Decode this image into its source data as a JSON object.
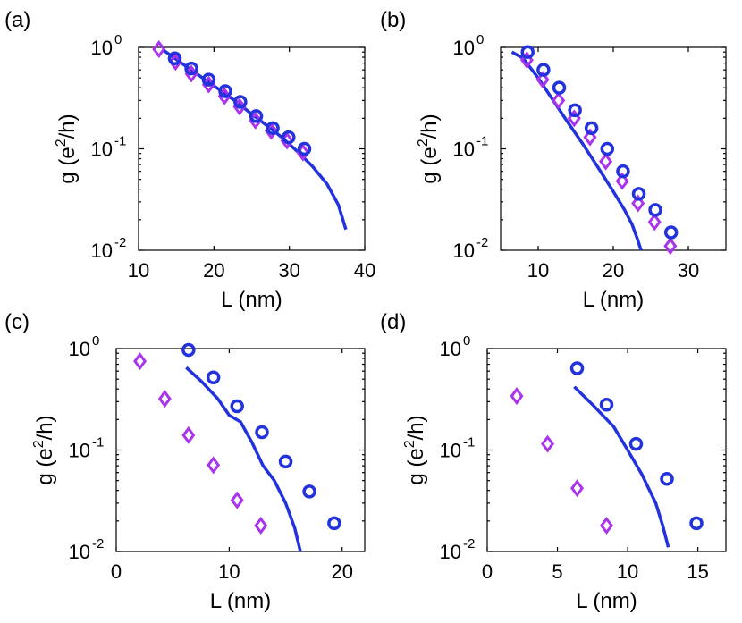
{
  "chart_data": [
    {
      "panel_label": "(a)",
      "type": "line",
      "xlabel": "L (nm)",
      "ylabel": "g (e²/h)",
      "xlim": [
        10,
        40
      ],
      "ylim": [
        0.01,
        1
      ],
      "yscale": "log",
      "x_ticks": [
        10,
        20,
        30,
        40
      ],
      "y_ticks": [
        {
          "base": "10",
          "exp": "0",
          "value": 1
        },
        {
          "base": "10",
          "exp": "-1",
          "value": 0.1
        },
        {
          "base": "10",
          "exp": "-2",
          "value": 0.01
        }
      ],
      "series": [
        {
          "name": "circles",
          "marker": "circle",
          "color": "#2233dd",
          "x": [
            14.8,
            17,
            19.3,
            21.5,
            23.5,
            25.6,
            27.8,
            29.9,
            32
          ],
          "y": [
            0.78,
            0.62,
            0.48,
            0.37,
            0.29,
            0.21,
            0.16,
            0.13,
            0.1
          ]
        },
        {
          "name": "diamonds",
          "marker": "diamond",
          "color": "#aa33ee",
          "x": [
            12.7,
            14.9,
            17,
            19.3,
            21.4,
            23.4,
            25.5,
            27.6,
            29.7,
            31.8
          ],
          "y": [
            0.96,
            0.72,
            0.55,
            0.43,
            0.33,
            0.26,
            0.19,
            0.15,
            0.12,
            0.092
          ]
        },
        {
          "name": "line",
          "marker": "line",
          "color": "#2233dd",
          "x": [
            13.2,
            15,
            17,
            19,
            21,
            23,
            25,
            27,
            29,
            31,
            33,
            35,
            36.5,
            37.5
          ],
          "y": [
            0.95,
            0.76,
            0.6,
            0.47,
            0.37,
            0.29,
            0.22,
            0.17,
            0.13,
            0.095,
            0.068,
            0.045,
            0.028,
            0.016
          ]
        }
      ]
    },
    {
      "panel_label": "(b)",
      "type": "line",
      "xlabel": "L (nm)",
      "ylabel": "g (e²/h)",
      "xlim": [
        5,
        35
      ],
      "ylim": [
        0.01,
        1
      ],
      "yscale": "log",
      "x_ticks": [
        10,
        20,
        30
      ],
      "y_ticks": [
        {
          "base": "10",
          "exp": "0",
          "value": 1
        },
        {
          "base": "10",
          "exp": "-1",
          "value": 0.1
        },
        {
          "base": "10",
          "exp": "-2",
          "value": 0.01
        }
      ],
      "series": [
        {
          "name": "circles",
          "marker": "circle",
          "color": "#2233dd",
          "x": [
            8.6,
            10.7,
            12.8,
            14.9,
            17.1,
            19.2,
            21.3,
            23.4,
            25.6,
            27.7
          ],
          "y": [
            0.9,
            0.6,
            0.4,
            0.24,
            0.16,
            0.1,
            0.06,
            0.036,
            0.025,
            0.015
          ]
        },
        {
          "name": "diamonds",
          "marker": "diamond",
          "color": "#aa33ee",
          "x": [
            8.5,
            10.6,
            12.7,
            14.8,
            16.9,
            19.0,
            21.2,
            23.3,
            25.5,
            27.6
          ],
          "y": [
            0.75,
            0.48,
            0.3,
            0.2,
            0.13,
            0.075,
            0.048,
            0.029,
            0.019,
            0.011
          ]
        },
        {
          "name": "line",
          "marker": "line",
          "color": "#2233dd",
          "x": [
            6.5,
            8,
            10,
            12,
            14,
            16,
            18,
            20,
            21.5,
            22.5,
            23.2,
            23.7
          ],
          "y": [
            0.9,
            0.78,
            0.5,
            0.3,
            0.18,
            0.11,
            0.065,
            0.038,
            0.025,
            0.018,
            0.013,
            0.01
          ]
        }
      ]
    },
    {
      "panel_label": "(c)",
      "type": "line",
      "xlabel": "L (nm)",
      "ylabel": "g (e²/h)",
      "xlim": [
        0,
        22
      ],
      "ylim": [
        0.01,
        1
      ],
      "yscale": "log",
      "x_ticks": [
        0,
        10,
        20
      ],
      "y_ticks": [
        {
          "base": "10",
          "exp": "0",
          "value": 1
        },
        {
          "base": "10",
          "exp": "-1",
          "value": 0.1
        },
        {
          "base": "10",
          "exp": "-2",
          "value": 0.01
        }
      ],
      "series": [
        {
          "name": "circles",
          "marker": "circle",
          "color": "#2233dd",
          "x": [
            6.4,
            8.6,
            10.7,
            12.9,
            15,
            17.1,
            19.3
          ],
          "y": [
            0.97,
            0.52,
            0.27,
            0.15,
            0.077,
            0.039,
            0.019
          ]
        },
        {
          "name": "diamonds",
          "marker": "diamond",
          "color": "#aa33ee",
          "x": [
            2.1,
            4.3,
            6.4,
            8.6,
            10.7,
            12.8
          ],
          "y": [
            0.75,
            0.32,
            0.14,
            0.071,
            0.032,
            0.018
          ]
        },
        {
          "name": "line",
          "marker": "line",
          "color": "#2233dd",
          "x": [
            6.2,
            7.5,
            9,
            10,
            11,
            12,
            13,
            14,
            15,
            15.8,
            16.3
          ],
          "y": [
            0.65,
            0.48,
            0.32,
            0.22,
            0.19,
            0.12,
            0.07,
            0.05,
            0.03,
            0.017,
            0.01
          ]
        }
      ]
    },
    {
      "panel_label": "(d)",
      "type": "line",
      "xlabel": "L (nm)",
      "ylabel": "g (e²/h)",
      "xlim": [
        0,
        17
      ],
      "ylim": [
        0.01,
        1
      ],
      "yscale": "log",
      "x_ticks": [
        0,
        5,
        10,
        15
      ],
      "y_ticks": [
        {
          "base": "10",
          "exp": "0",
          "value": 1
        },
        {
          "base": "10",
          "exp": "-1",
          "value": 0.1
        },
        {
          "base": "10",
          "exp": "-2",
          "value": 0.01
        }
      ],
      "series": [
        {
          "name": "circles",
          "marker": "circle",
          "color": "#2233dd",
          "x": [
            6.4,
            8.5,
            10.6,
            12.8,
            14.9
          ],
          "y": [
            0.64,
            0.28,
            0.115,
            0.052,
            0.019
          ]
        },
        {
          "name": "diamonds",
          "marker": "diamond",
          "color": "#aa33ee",
          "x": [
            2.1,
            4.3,
            6.4,
            8.5
          ],
          "y": [
            0.34,
            0.115,
            0.042,
            0.018
          ]
        },
        {
          "name": "line",
          "marker": "line",
          "color": "#2233dd",
          "x": [
            6.2,
            7.5,
            9,
            10,
            11,
            12,
            12.5,
            12.9
          ],
          "y": [
            0.42,
            0.28,
            0.17,
            0.1,
            0.058,
            0.03,
            0.018,
            0.011
          ]
        }
      ]
    }
  ]
}
